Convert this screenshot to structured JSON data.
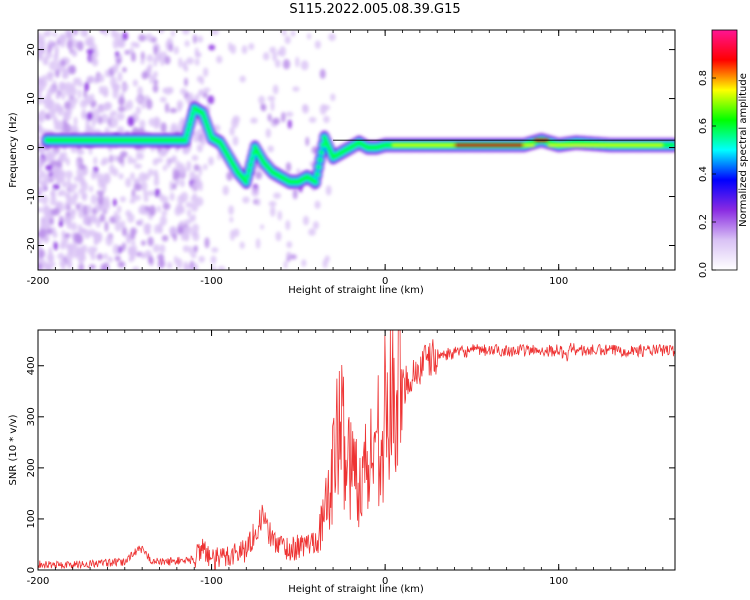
{
  "title": "S115.2022.005.08.39.G15",
  "chart_data": [
    {
      "type": "heatmap",
      "xlabel": "Height of straight line (km)",
      "ylabel": "Frequency (Hz)",
      "xlim": [
        -200,
        167
      ],
      "ylim": [
        -25,
        24
      ],
      "xticks": [
        -200,
        -100,
        0,
        100
      ],
      "yticks": [
        -20,
        -10,
        0,
        10,
        20
      ],
      "colorbar": {
        "label": "Normalized spectral amplitude",
        "ticks": [
          0.0,
          0.2,
          0.4,
          0.6,
          0.8
        ],
        "colors": [
          "#ffffff",
          "#d9c2f5",
          "#8a2be2",
          "#0000ff",
          "#00ffff",
          "#00ff00",
          "#ffff00",
          "#ff0000",
          "#ff1493"
        ]
      },
      "ridge": {
        "x": [
          -195,
          -180,
          -160,
          -140,
          -125,
          -115,
          -110,
          -105,
          -100,
          -95,
          -90,
          -85,
          -80,
          -75,
          -70,
          -65,
          -60,
          -55,
          -50,
          -45,
          -40,
          -35,
          -30,
          -25,
          -20,
          -15,
          -10,
          -5,
          0,
          20,
          40,
          60,
          80,
          90,
          100,
          110,
          130,
          150,
          167
        ],
        "y": [
          1.5,
          1.5,
          1.5,
          1.5,
          1.5,
          1.5,
          8,
          7,
          2,
          1,
          -2,
          -5,
          -7,
          0,
          -3,
          -5,
          -6,
          -7,
          -7,
          -6,
          -7,
          2,
          -2,
          -1,
          0,
          1,
          0,
          0,
          0.5,
          0.5,
          0.5,
          0.5,
          0.5,
          1.5,
          0.5,
          1,
          0.5,
          0.5,
          0.5
        ]
      },
      "grid": false
    },
    {
      "type": "line",
      "xlabel": "Height of straight line (km)",
      "ylabel": "SNR (10 * v/v)",
      "xlim": [
        -200,
        167
      ],
      "ylim": [
        0,
        470
      ],
      "xticks": [
        -200,
        -100,
        0,
        100
      ],
      "yticks": [
        0,
        100,
        200,
        300,
        400
      ],
      "color": "#ee3333",
      "series": [
        {
          "x": [
            -200,
            -190,
            -180,
            -170,
            -160,
            -150,
            -145,
            -140,
            -135,
            -130,
            -120,
            -110,
            -105,
            -100,
            -90,
            -80,
            -70,
            -68,
            -65,
            -60,
            -55,
            -50,
            -45,
            -40,
            -35,
            -30,
            -28,
            -25,
            -22,
            -20,
            -15,
            -10,
            -5,
            0,
            5,
            10,
            15,
            20,
            25,
            30,
            40,
            50,
            60,
            70,
            80,
            90,
            100,
            105,
            108,
            110,
            120,
            130,
            140,
            150,
            160,
            167
          ],
          "y": [
            12,
            10,
            10,
            12,
            14,
            15,
            35,
            40,
            20,
            15,
            18,
            20,
            50,
            15,
            30,
            40,
            110,
            80,
            60,
            50,
            40,
            45,
            50,
            60,
            100,
            200,
            250,
            280,
            230,
            200,
            180,
            200,
            260,
            300,
            330,
            360,
            380,
            395,
            410,
            420,
            425,
            430,
            430,
            430,
            430,
            430,
            430,
            420,
            440,
            430,
            430,
            430,
            430,
            430,
            430,
            430
          ]
        }
      ],
      "grid": false
    }
  ]
}
